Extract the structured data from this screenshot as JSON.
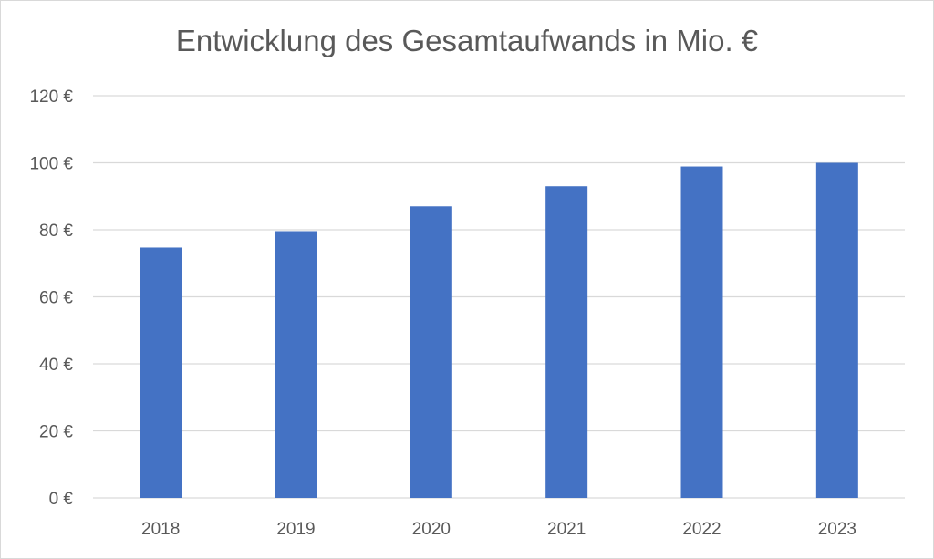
{
  "chart_data": {
    "type": "bar",
    "title": "Entwicklung des Gesamtaufwands in Mio. €",
    "xlabel": "",
    "ylabel": "",
    "categories": [
      "2018",
      "2019",
      "2020",
      "2021",
      "2022",
      "2023"
    ],
    "values": [
      74.7,
      79.6,
      87,
      93,
      98.9,
      100
    ],
    "ylim": [
      0,
      120
    ],
    "yticks": [
      0,
      20,
      40,
      60,
      80,
      100,
      120
    ],
    "ytick_labels": [
      "0 €",
      "20 €",
      "40 €",
      "60 €",
      "80 €",
      "100 €",
      "120 €"
    ],
    "grid": "horizontal",
    "legend": "none",
    "bar_color": "#4472c4",
    "grid_color": "#d9d9d9"
  }
}
